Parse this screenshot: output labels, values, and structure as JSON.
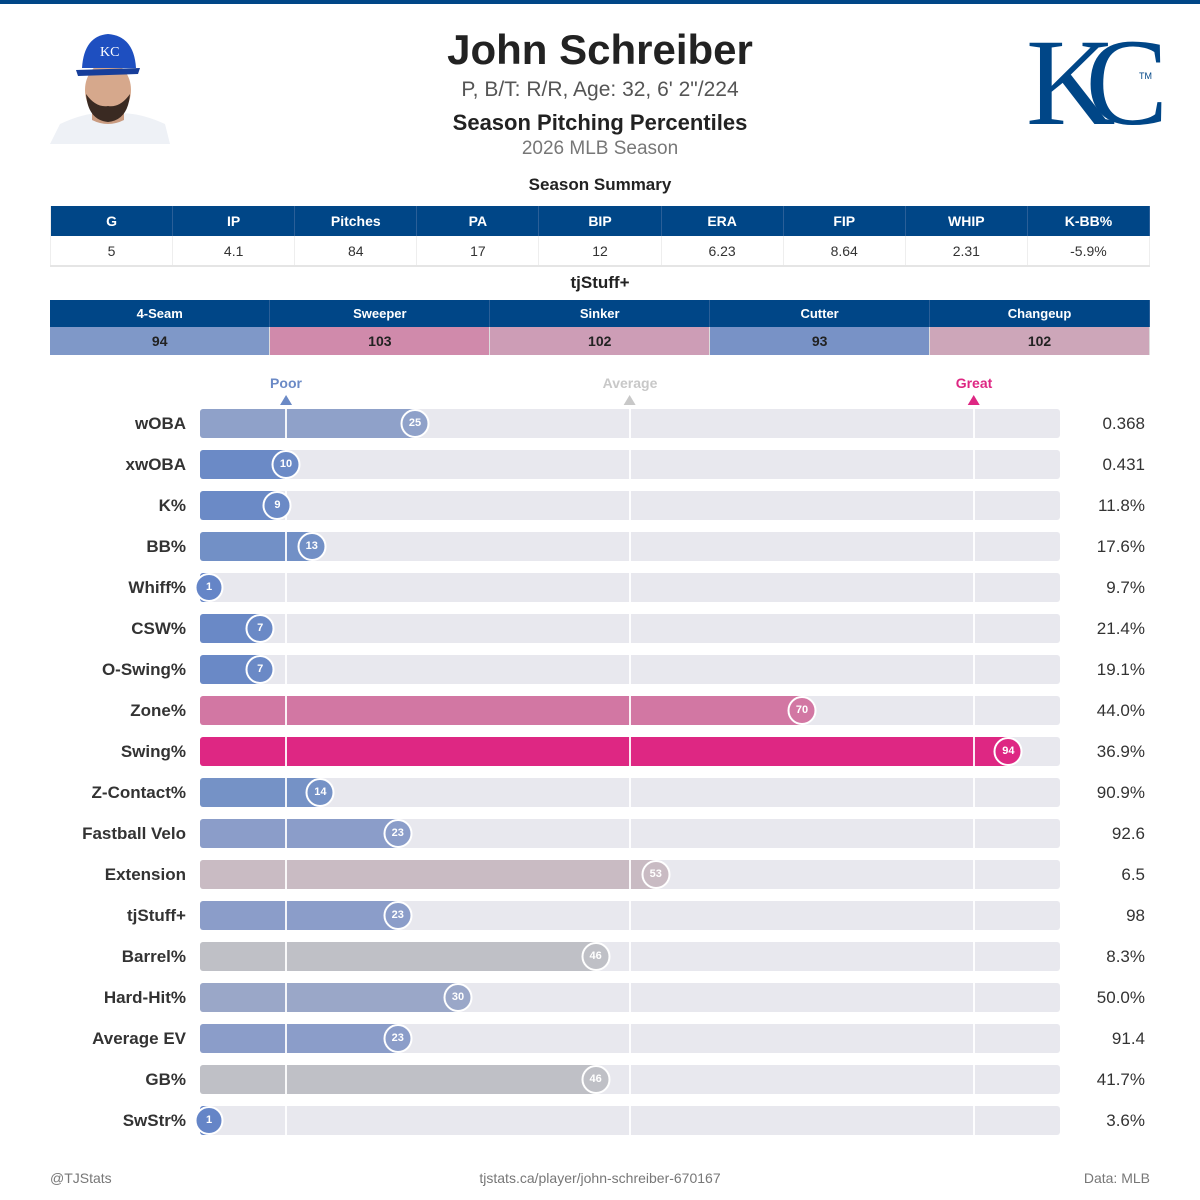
{
  "header": {
    "name": "John Schreiber",
    "bio": "P, B/T: R/R, Age: 32, 6' 2\"/224",
    "subtitle": "Season Pitching Percentiles",
    "season": "2026 MLB Season",
    "logo_text": "KC",
    "logo_tm": "TM",
    "brand_color": "#004687"
  },
  "summary": {
    "title": "Season Summary",
    "headers": [
      "G",
      "IP",
      "Pitches",
      "PA",
      "BIP",
      "ERA",
      "FIP",
      "WHIP",
      "K-BB%"
    ],
    "values": [
      "5",
      "4.1",
      "84",
      "17",
      "12",
      "6.23",
      "8.64",
      "2.31",
      "-5.9%"
    ]
  },
  "tjstuff": {
    "title": "tjStuff+",
    "pitches": [
      {
        "name": "4-Seam",
        "value": "94",
        "color": "#7f98c8"
      },
      {
        "name": "Sweeper",
        "value": "103",
        "color": "#d08aab"
      },
      {
        "name": "Sinker",
        "value": "102",
        "color": "#cd9db6"
      },
      {
        "name": "Cutter",
        "value": "93",
        "color": "#7892c6"
      },
      {
        "name": "Changeup",
        "value": "102",
        "color": "#cda6b9"
      }
    ]
  },
  "scale": {
    "poor": "Poor",
    "average": "Average",
    "great": "Great",
    "poor_color": "#6b8ac6",
    "average_color": "#c8c8c8",
    "great_color": "#de2783"
  },
  "chart_data": {
    "type": "bar",
    "xlim": [
      0,
      100
    ],
    "reference_lines": [
      10,
      50,
      90
    ],
    "rows": [
      {
        "label": "wOBA",
        "percentile": 25,
        "value": "0.368",
        "color": "#8fa1c9"
      },
      {
        "label": "xwOBA",
        "percentile": 10,
        "value": "0.431",
        "color": "#6b8ac6"
      },
      {
        "label": "K%",
        "percentile": 9,
        "value": "11.8%",
        "color": "#6b8ac6"
      },
      {
        "label": "BB%",
        "percentile": 13,
        "value": "17.6%",
        "color": "#7290c6"
      },
      {
        "label": "Whiff%",
        "percentile": 1,
        "value": "9.7%",
        "color": "#6585c7"
      },
      {
        "label": "CSW%",
        "percentile": 7,
        "value": "21.4%",
        "color": "#6a89c6"
      },
      {
        "label": "O-Swing%",
        "percentile": 7,
        "value": "19.1%",
        "color": "#6a89c6"
      },
      {
        "label": "Zone%",
        "percentile": 70,
        "value": "44.0%",
        "color": "#d277a3"
      },
      {
        "label": "Swing%",
        "percentile": 94,
        "value": "36.9%",
        "color": "#de2783"
      },
      {
        "label": "Z-Contact%",
        "percentile": 14,
        "value": "90.9%",
        "color": "#7592c6"
      },
      {
        "label": "Fastball Velo",
        "percentile": 23,
        "value": "92.6",
        "color": "#8b9dc9"
      },
      {
        "label": "Extension",
        "percentile": 53,
        "value": "6.5",
        "color": "#c9bbc3"
      },
      {
        "label": "tjStuff+",
        "percentile": 23,
        "value": "98",
        "color": "#8b9dc9"
      },
      {
        "label": "Barrel%",
        "percentile": 46,
        "value": "8.3%",
        "color": "#bfc0c6"
      },
      {
        "label": "Hard-Hit%",
        "percentile": 30,
        "value": "50.0%",
        "color": "#9aa7c8"
      },
      {
        "label": "Average EV",
        "percentile": 23,
        "value": "91.4",
        "color": "#8b9dc9"
      },
      {
        "label": "GB%",
        "percentile": 46,
        "value": "41.7%",
        "color": "#bfc0c6"
      },
      {
        "label": "SwStr%",
        "percentile": 1,
        "value": "3.6%",
        "color": "#6585c7"
      }
    ]
  },
  "footer": {
    "handle": "@TJStats",
    "url": "tjstats.ca/player/john-schreiber-670167",
    "source": "Data: MLB"
  }
}
